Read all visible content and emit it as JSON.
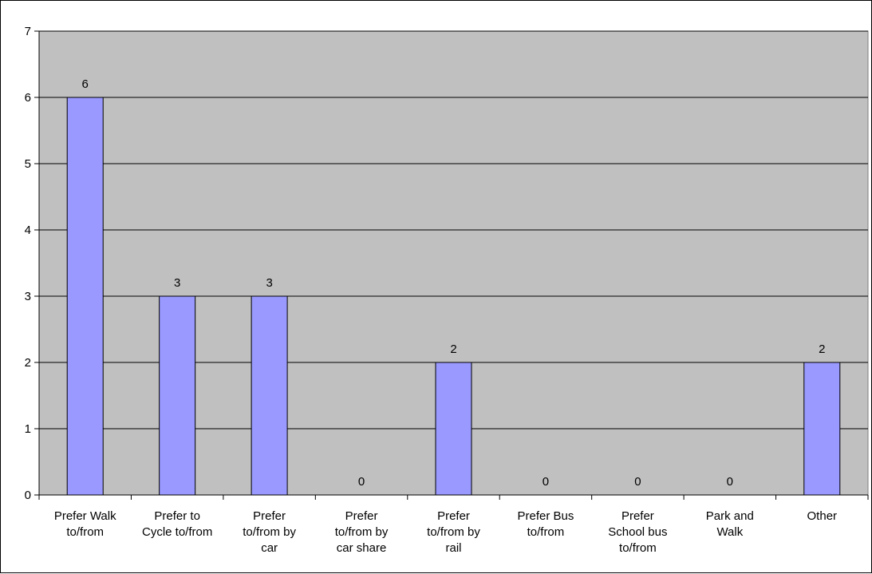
{
  "chart_data": {
    "type": "bar",
    "title": "",
    "xlabel": "",
    "ylabel": "",
    "categories": [
      [
        "Prefer Walk",
        "to/from"
      ],
      [
        "Prefer to",
        "Cycle to/from"
      ],
      [
        "Prefer",
        "to/from by",
        "car"
      ],
      [
        "Prefer",
        "to/from by",
        "car share"
      ],
      [
        "Prefer",
        "to/from by",
        "rail"
      ],
      [
        "Prefer Bus",
        "to/from"
      ],
      [
        "Prefer",
        "School bus",
        "to/from"
      ],
      [
        "Park and",
        "Walk"
      ],
      [
        "Other"
      ]
    ],
    "values": [
      6,
      3,
      3,
      0,
      2,
      0,
      0,
      0,
      2
    ],
    "ylim": [
      0,
      7
    ],
    "yticks": [
      0,
      1,
      2,
      3,
      4,
      5,
      6,
      7
    ],
    "grid": true,
    "legend": "none",
    "colors": {
      "plot_background": "#c0c0c0",
      "bar_fill": "#9999ff",
      "bar_stroke": "#000000",
      "gridline": "#000000"
    }
  }
}
